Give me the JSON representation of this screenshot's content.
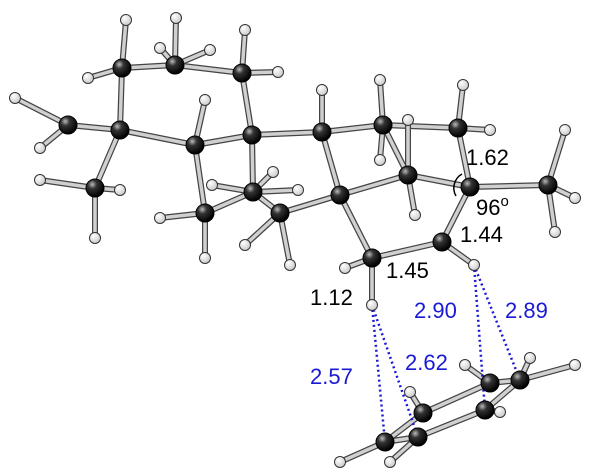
{
  "labels": {
    "bond_c_c_1": "1.62",
    "angle": {
      "text": "96",
      "sup": "o"
    },
    "bond_c_c_2": "1.44",
    "bond_c_c_3": "1.45",
    "bond_c_h": "1.12",
    "contact_1": "2.90",
    "contact_2": "2.89",
    "contact_3": "2.57",
    "contact_4": "2.62"
  }
}
